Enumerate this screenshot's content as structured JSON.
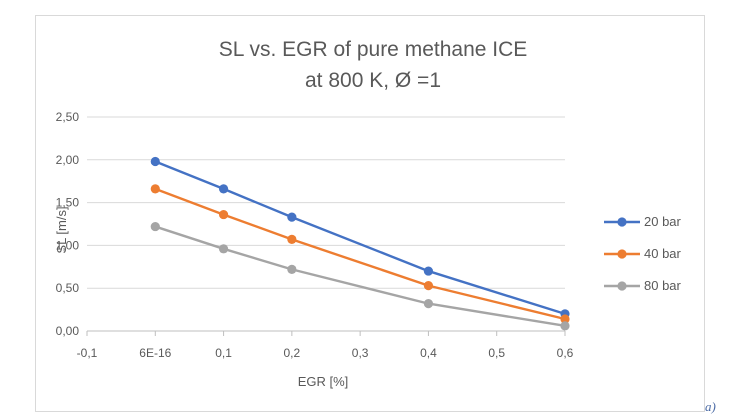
{
  "chart_data": {
    "type": "line",
    "title_line1": "SL vs. EGR  of pure methane ICE",
    "title_line2": "at 800 K, Ø =1",
    "xlabel": "EGR [%]",
    "ylabel": "SL [m/s]",
    "xlim": [
      -0.1,
      0.6
    ],
    "ylim": [
      0,
      2.5
    ],
    "x_ticks": [
      {
        "value": -0.1,
        "label": "-0,1"
      },
      {
        "value": 0.0,
        "label": "6E-16"
      },
      {
        "value": 0.1,
        "label": "0,1"
      },
      {
        "value": 0.2,
        "label": "0,2"
      },
      {
        "value": 0.3,
        "label": "0,3"
      },
      {
        "value": 0.4,
        "label": "0,4"
      },
      {
        "value": 0.5,
        "label": "0,5"
      },
      {
        "value": 0.6,
        "label": "0,6"
      }
    ],
    "y_ticks": [
      {
        "value": 0.0,
        "label": "0,00"
      },
      {
        "value": 0.5,
        "label": "0,50"
      },
      {
        "value": 1.0,
        "label": "1,00"
      },
      {
        "value": 1.5,
        "label": "1,50"
      },
      {
        "value": 2.0,
        "label": "2,00"
      },
      {
        "value": 2.5,
        "label": "2,50"
      }
    ],
    "grid": true,
    "legend_position": "right",
    "x": [
      0.0,
      0.1,
      0.2,
      0.4,
      0.6
    ],
    "series": [
      {
        "name": "20 bar",
        "color": "#4472c4",
        "values": [
          1.98,
          1.66,
          1.33,
          0.7,
          0.2
        ]
      },
      {
        "name": "40 bar",
        "color": "#ed7d31",
        "values": [
          1.66,
          1.36,
          1.07,
          0.53,
          0.14
        ]
      },
      {
        "name": "80 bar",
        "color": "#a5a5a5",
        "values": [
          1.22,
          0.96,
          0.72,
          0.32,
          0.06
        ]
      }
    ]
  },
  "figure_label": "a)"
}
